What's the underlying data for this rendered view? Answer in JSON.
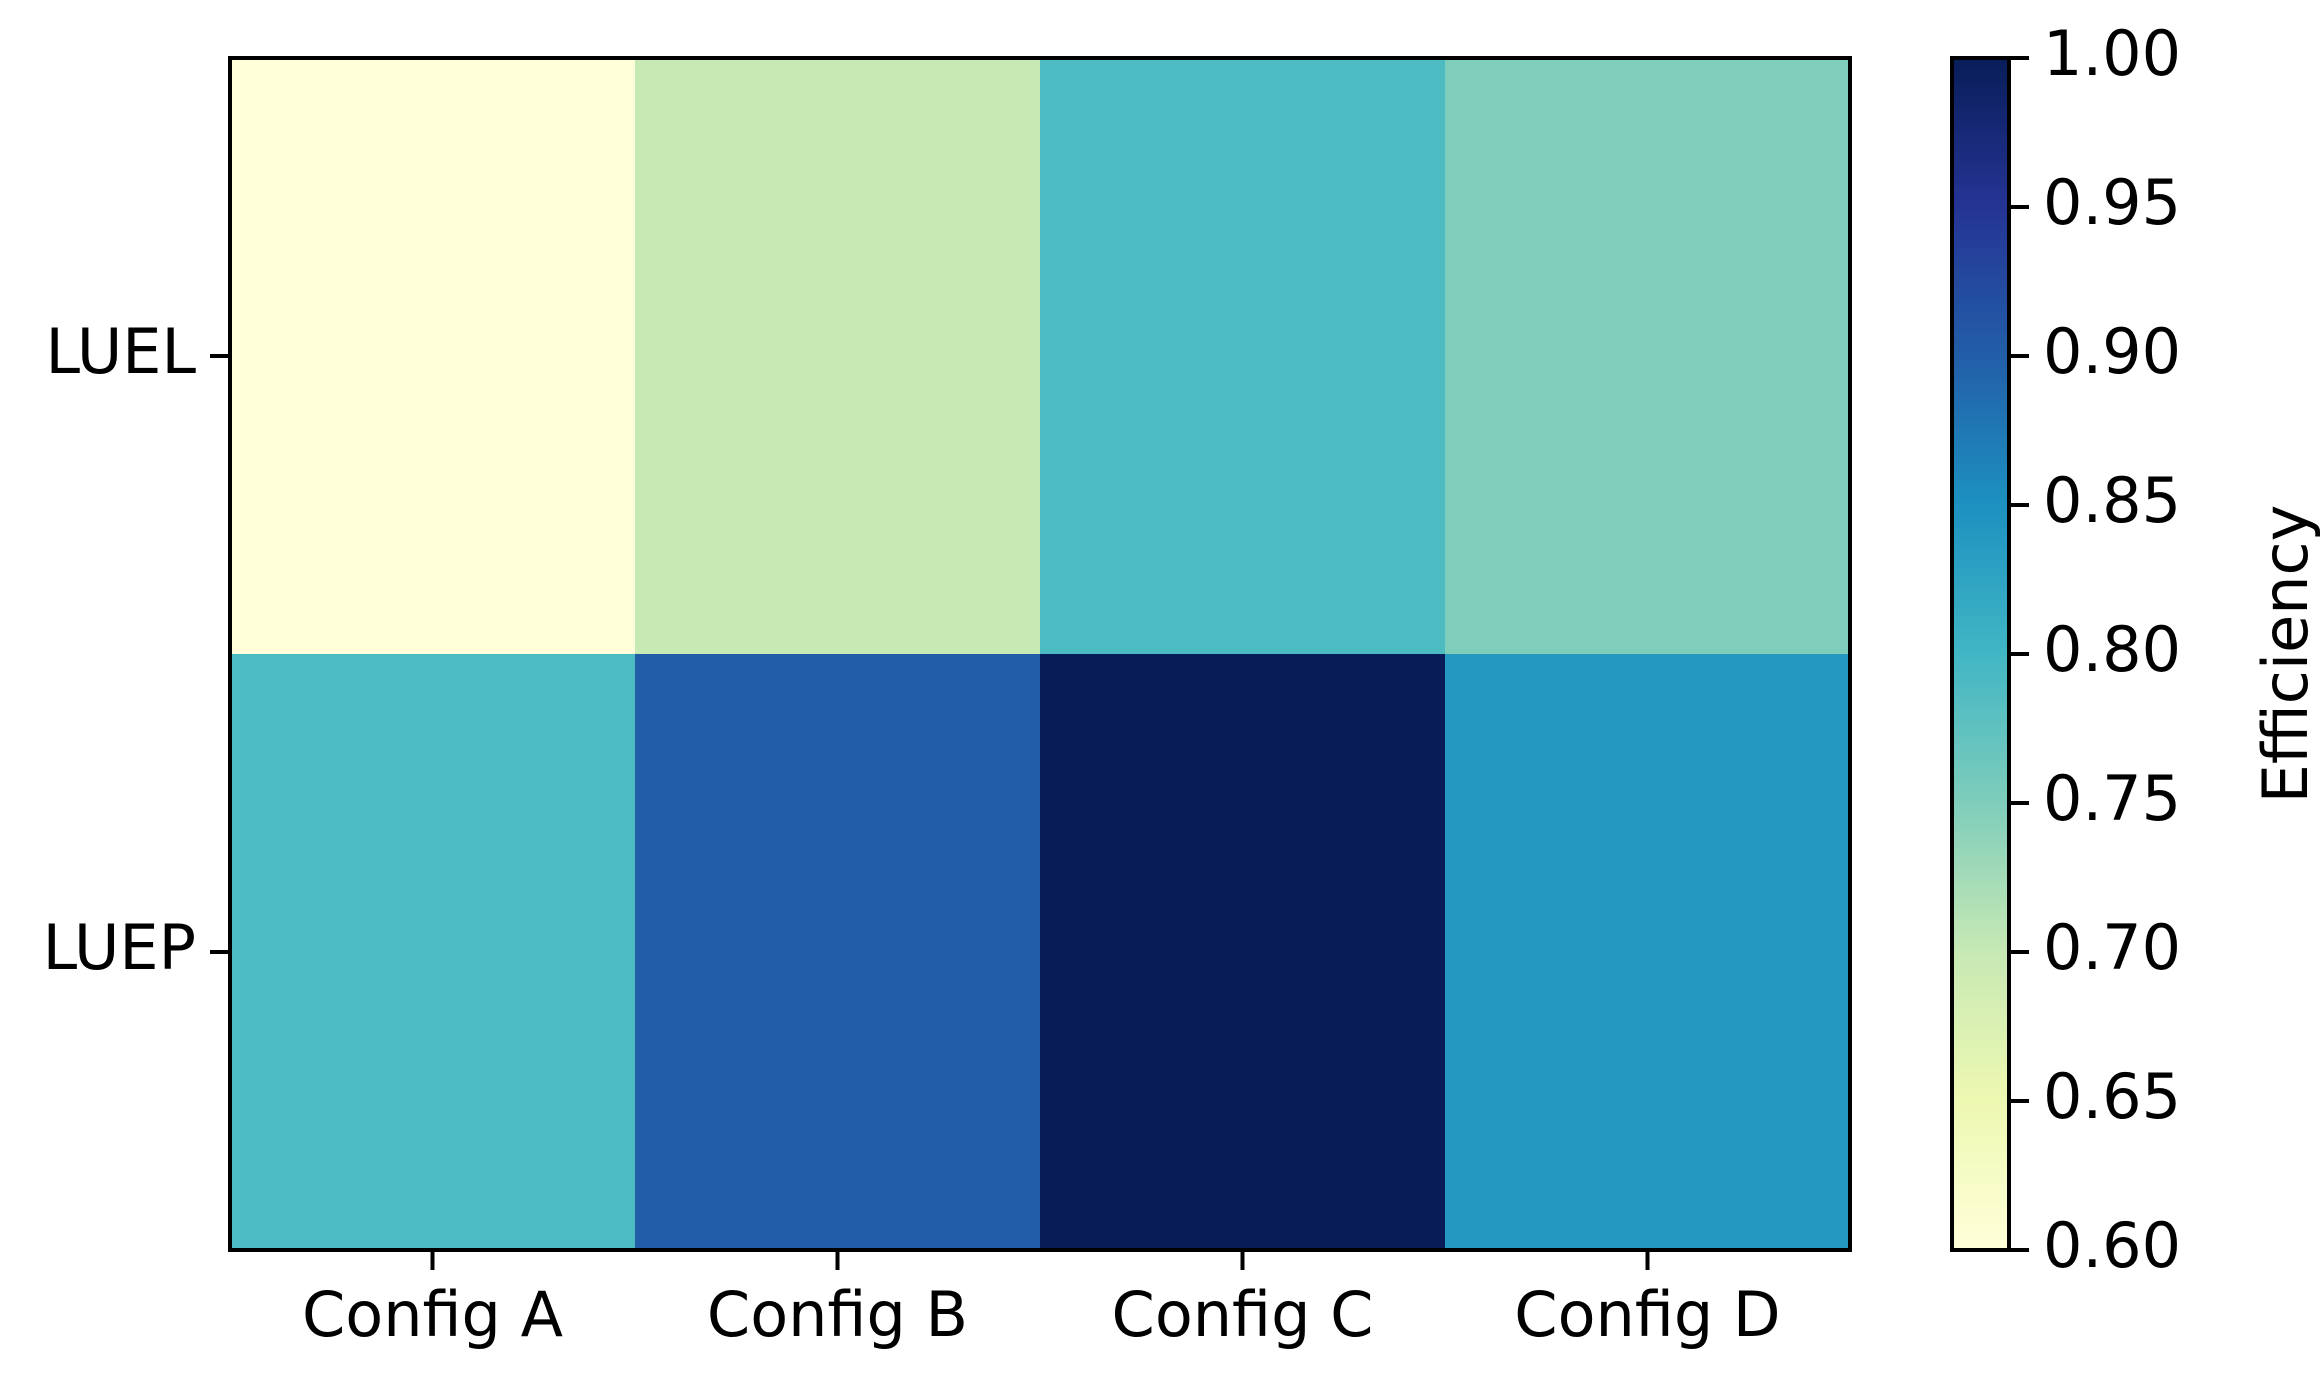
{
  "chart_data": {
    "type": "heatmap",
    "x_categories": [
      "Config A",
      "Config B",
      "Config C",
      "Config D"
    ],
    "y_categories": [
      "LUEL",
      "LUEP"
    ],
    "values": [
      [
        0.6,
        0.7,
        0.79,
        0.75
      ],
      [
        0.79,
        0.9,
        1.0,
        0.84
      ]
    ],
    "colormap": "YlGnBu",
    "vmin": 0.6,
    "vmax": 1.0,
    "colorbar": {
      "label": "Efficiency",
      "ticks": [
        "0.60",
        "0.65",
        "0.70",
        "0.75",
        "0.80",
        "0.85",
        "0.90",
        "0.95",
        "1.00"
      ]
    }
  }
}
